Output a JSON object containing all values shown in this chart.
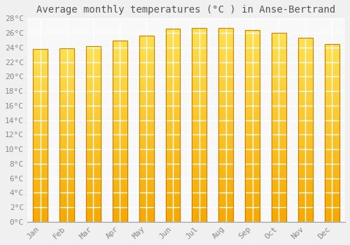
{
  "title": "Average monthly temperatures (°C ) in Anse-Bertrand",
  "months": [
    "Jan",
    "Feb",
    "Mar",
    "Apr",
    "May",
    "Jun",
    "Jul",
    "Aug",
    "Sep",
    "Oct",
    "Nov",
    "Dec"
  ],
  "values": [
    23.8,
    23.9,
    24.2,
    24.9,
    25.6,
    26.6,
    26.7,
    26.7,
    26.4,
    26.0,
    25.3,
    24.5
  ],
  "bar_color_top": "#FFD966",
  "bar_color_bottom": "#F5A800",
  "bar_edge_color": "#C8820A",
  "ylim": [
    0,
    28
  ],
  "ytick_step": 2,
  "background_color": "#f0f0f0",
  "plot_bg_color": "#f8f8f8",
  "grid_color": "#ffffff",
  "title_fontsize": 10,
  "tick_fontsize": 8,
  "font_family": "monospace"
}
